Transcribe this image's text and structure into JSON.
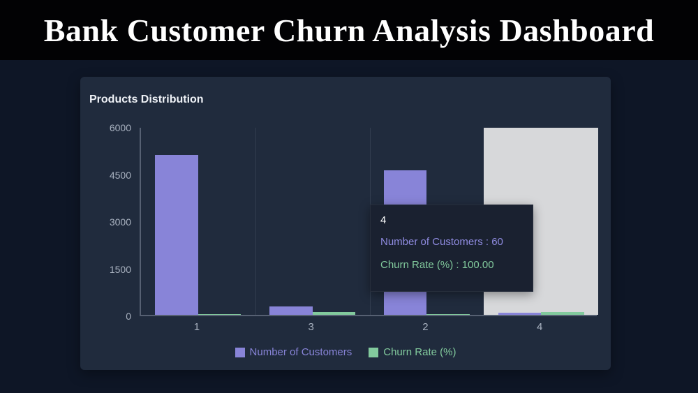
{
  "header": {
    "title": "Bank Customer Churn Analysis Dashboard"
  },
  "panel": {
    "title": "Products Distribution"
  },
  "tooltip": {
    "title": "4",
    "lines": [
      {
        "label": "Number of Customers : 60",
        "color": "#8f8be0"
      },
      {
        "label": "Churn Rate (%) : 100.00",
        "color": "#82ca9d"
      }
    ]
  },
  "chart_data": {
    "type": "bar",
    "title": "Products Distribution",
    "categories": [
      "1",
      "3",
      "2",
      "4"
    ],
    "series": [
      {
        "name": "Number of Customers",
        "color": "#8884d8",
        "values": [
          5084,
          266,
          4590,
          60
        ]
      },
      {
        "name": "Churn Rate (%)",
        "color": "#82ca9d",
        "values": [
          27.71,
          82.71,
          7.58,
          100.0
        ]
      }
    ],
    "xlabel": "",
    "ylabel": "",
    "ylim": [
      0,
      6000
    ],
    "yticks": [
      0,
      1500,
      3000,
      4500,
      6000
    ],
    "grid": "vertical",
    "legend_position": "bottom",
    "highlighted_category": "4"
  }
}
